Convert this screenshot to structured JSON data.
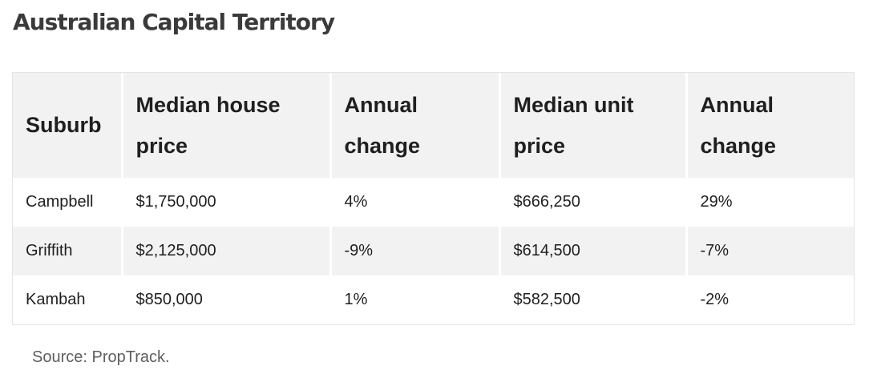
{
  "title": "Australian Capital Territory",
  "table": {
    "headers": [
      "Suburb",
      "Median house price",
      "Annual change",
      "Median unit price",
      "Annual change"
    ],
    "rows": [
      [
        "Campbell",
        "$1,750,000",
        "4%",
        "$666,250",
        "29%"
      ],
      [
        "Griffith",
        "$2,125,000",
        "-9%",
        "$614,500",
        "-7%"
      ],
      [
        "Kambah",
        "$850,000",
        "1%",
        "$582,500",
        "-2%"
      ]
    ]
  },
  "source": "Source: PropTrack."
}
